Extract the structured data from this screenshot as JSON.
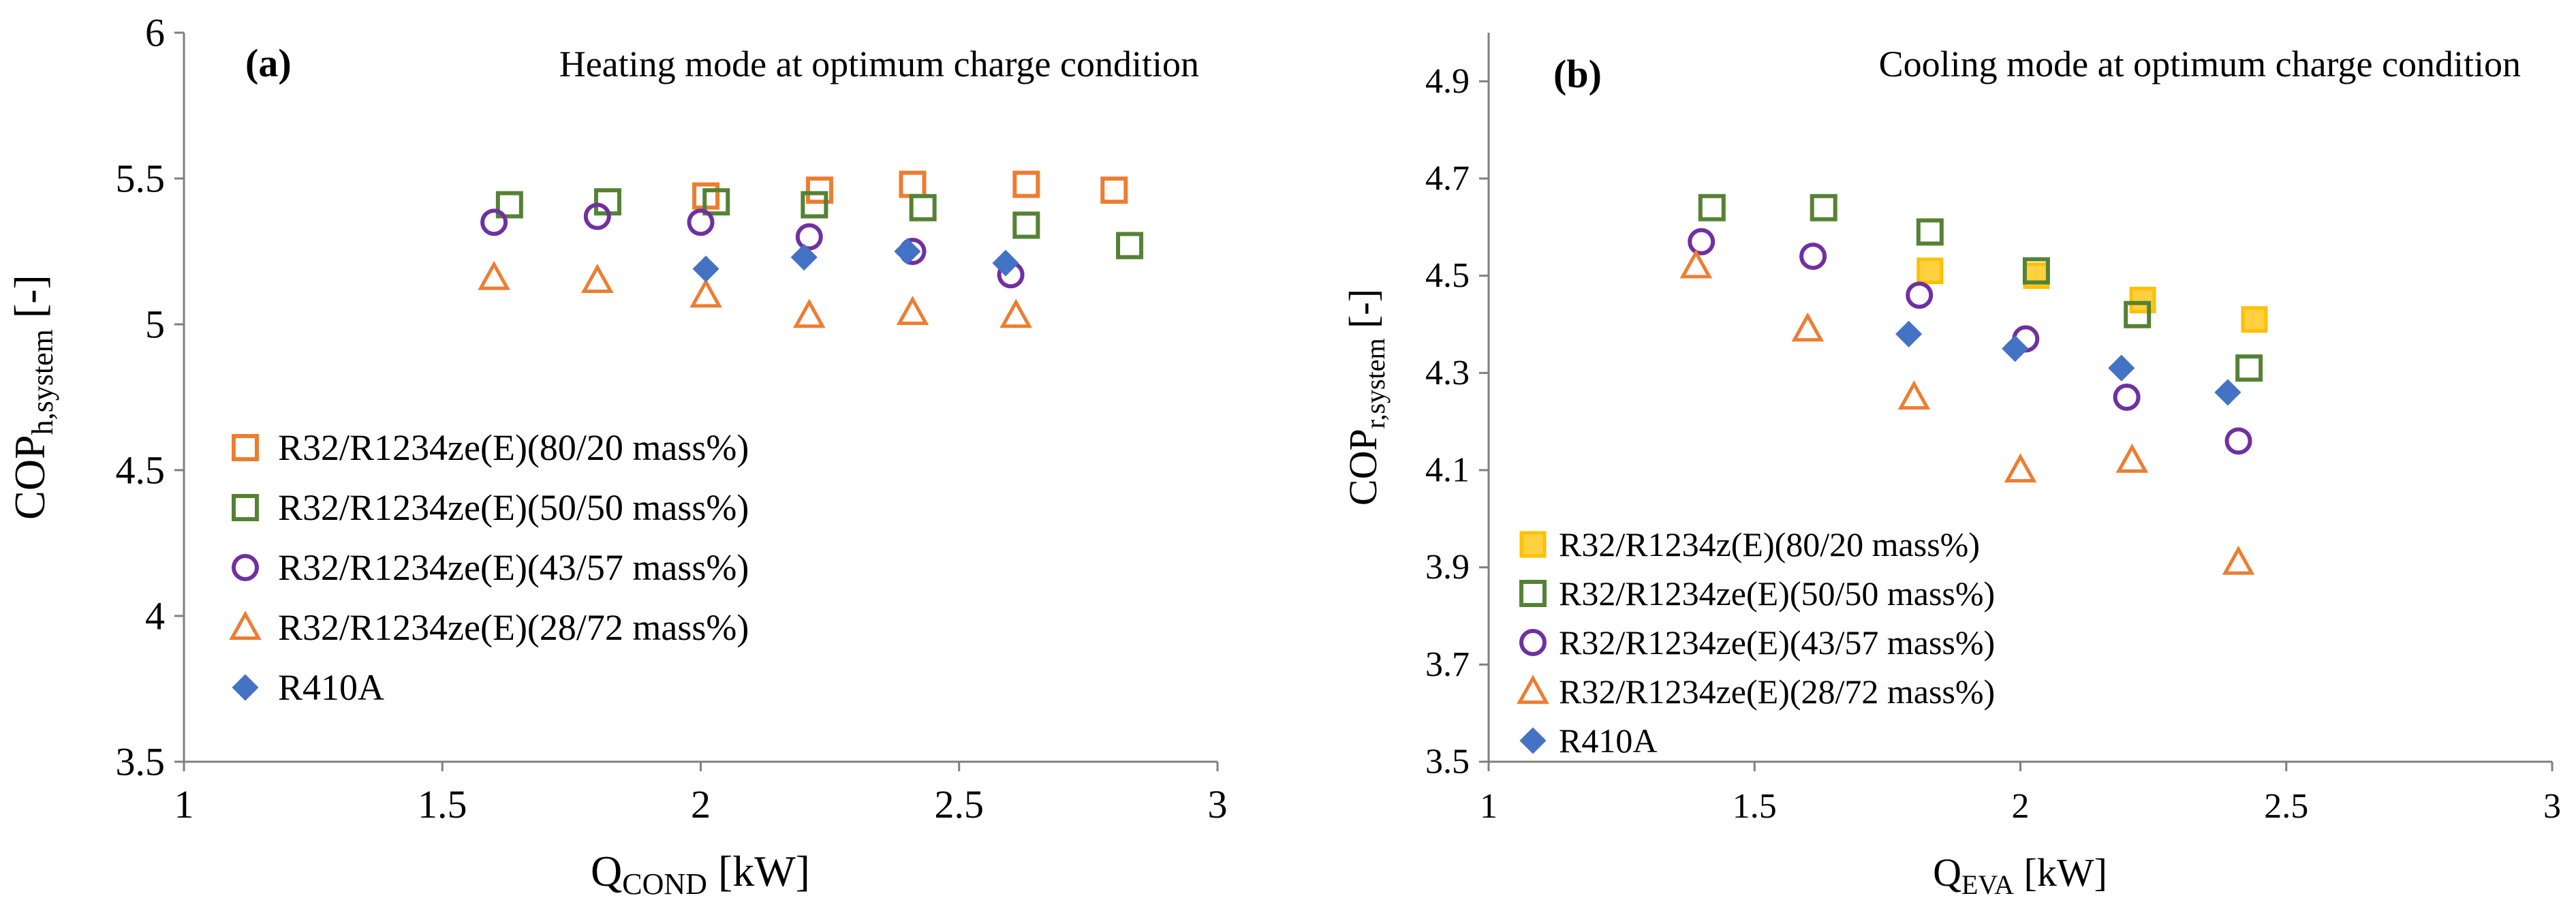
{
  "chart_data": [
    {
      "type": "scatter",
      "panel_label": "(a)",
      "title": "Heating mode at optimum charge condition",
      "xlabel": {
        "main": "Q",
        "sub": "COND",
        "unit": " [kW]"
      },
      "ylabel": {
        "main": "COP",
        "sub": "h,system",
        "unit": " [-]"
      },
      "xlim": [
        1,
        3
      ],
      "ylim": [
        3.5,
        6
      ],
      "xticks": [
        "1",
        "1.5",
        "2",
        "2.5",
        "3"
      ],
      "yticks": [
        "3.5",
        "4",
        "4.5",
        "5",
        "5.5",
        "6"
      ],
      "grid": false,
      "legend_position": "bottom-left",
      "series": [
        {
          "name": "R32/R1234ze(E)(80/20 mass%)",
          "marker": "square-open",
          "color": "#ED7D31",
          "points": [
            [
              2.01,
              5.44
            ],
            [
              2.23,
              5.46
            ],
            [
              2.41,
              5.48
            ],
            [
              2.63,
              5.48
            ],
            [
              2.8,
              5.46
            ]
          ]
        },
        {
          "name": "R32/R1234ze(E)(50/50 mass%)",
          "marker": "square-open",
          "color": "#548235",
          "points": [
            [
              1.63,
              5.41
            ],
            [
              1.82,
              5.42
            ],
            [
              2.03,
              5.42
            ],
            [
              2.22,
              5.41
            ],
            [
              2.43,
              5.4
            ],
            [
              2.63,
              5.34
            ],
            [
              2.83,
              5.27
            ]
          ]
        },
        {
          "name": "R32/R1234ze(E)(43/57 mass%)",
          "marker": "circle-open",
          "color": "#7030A0",
          "points": [
            [
              1.6,
              5.35
            ],
            [
              1.8,
              5.37
            ],
            [
              2.0,
              5.35
            ],
            [
              2.21,
              5.3
            ],
            [
              2.41,
              5.25
            ],
            [
              2.6,
              5.17
            ]
          ]
        },
        {
          "name": "R32/R1234ze(E)(28/72 mass%)",
          "marker": "triangle-open",
          "color": "#ED7D31",
          "points": [
            [
              1.6,
              5.16
            ],
            [
              1.8,
              5.15
            ],
            [
              2.01,
              5.1
            ],
            [
              2.21,
              5.03
            ],
            [
              2.41,
              5.04
            ],
            [
              2.61,
              5.03
            ]
          ]
        },
        {
          "name": "R410A",
          "marker": "diamond-filled",
          "color": "#4472C4",
          "points": [
            [
              2.01,
              5.19
            ],
            [
              2.2,
              5.23
            ],
            [
              2.4,
              5.25
            ],
            [
              2.59,
              5.21
            ]
          ]
        }
      ]
    },
    {
      "type": "scatter",
      "panel_label": "(b)",
      "title": "Cooling mode at optimum charge condition",
      "xlabel": {
        "main": "Q",
        "sub": "EVA",
        "unit": " [kW]"
      },
      "ylabel": {
        "main": "COP",
        "sub": "r,system",
        "unit": " [-]"
      },
      "xlim": [
        1,
        3
      ],
      "ylim": [
        3.5,
        5.0
      ],
      "xticks": [
        "1",
        "1.5",
        "2",
        "2.5",
        "3"
      ],
      "yticks": [
        "3.5",
        "3.7",
        "3.9",
        "4.1",
        "4.3",
        "4.5",
        "4.7",
        "4.9"
      ],
      "grid": false,
      "legend_position": "bottom-left",
      "series": [
        {
          "name": "R32/R1234z(E)(80/20 mass%)",
          "marker": "square-filled-light",
          "color": "#FFC000",
          "points": [
            [
              1.83,
              4.51
            ],
            [
              2.03,
              4.5
            ],
            [
              2.23,
              4.45
            ],
            [
              2.44,
              4.41
            ]
          ]
        },
        {
          "name": "R32/R1234ze(E)(50/50 mass%)",
          "marker": "square-open",
          "color": "#548235",
          "points": [
            [
              1.42,
              4.64
            ],
            [
              1.63,
              4.64
            ],
            [
              1.83,
              4.59
            ],
            [
              2.03,
              4.51
            ],
            [
              2.22,
              4.42
            ],
            [
              2.43,
              4.31
            ]
          ]
        },
        {
          "name": "R32/R1234ze(E)(43/57 mass%)",
          "marker": "circle-open",
          "color": "#7030A0",
          "points": [
            [
              1.4,
              4.57
            ],
            [
              1.61,
              4.54
            ],
            [
              1.81,
              4.46
            ],
            [
              2.01,
              4.37
            ],
            [
              2.2,
              4.25
            ],
            [
              2.41,
              4.16
            ]
          ]
        },
        {
          "name": "R32/R1234ze(E)(28/72 mass%)",
          "marker": "triangle-open",
          "color": "#ED7D31",
          "points": [
            [
              1.39,
              4.52
            ],
            [
              1.6,
              4.39
            ],
            [
              1.8,
              4.25
            ],
            [
              2.0,
              4.1
            ],
            [
              2.21,
              4.12
            ],
            [
              2.41,
              3.91
            ]
          ]
        },
        {
          "name": "R410A",
          "marker": "diamond-filled",
          "color": "#4472C4",
          "points": [
            [
              1.79,
              4.38
            ],
            [
              1.99,
              4.35
            ],
            [
              2.19,
              4.31
            ],
            [
              2.39,
              4.26
            ]
          ]
        }
      ]
    }
  ]
}
